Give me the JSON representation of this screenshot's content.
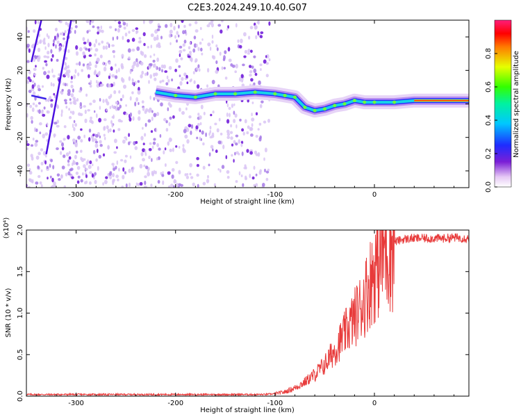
{
  "page": {
    "title": "C2E3.2024.249.10.40.G07"
  },
  "chart_data": [
    {
      "type": "heatmap",
      "title": "C2E3.2024.249.10.40.G07",
      "xlabel": "Height of straight line (km)",
      "ylabel": "Frequency (Hz)",
      "xlim": [
        -350,
        95
      ],
      "ylim": [
        -50,
        50
      ],
      "xticks": [
        -300,
        -200,
        -100,
        0
      ],
      "yticks": [
        -40,
        -20,
        0,
        20,
        40
      ],
      "colorbar": {
        "label": "Normalized spectral amplitude",
        "range": [
          0,
          1
        ],
        "ticks": [
          0.0,
          0.2,
          0.4,
          0.6,
          0.8
        ],
        "colormap": "rainbow (white-violet-blue-cyan-green-yellow-red-magenta)"
      },
      "dominant_ridge": {
        "description": "strong signal trace",
        "x": [
          -220,
          -200,
          -180,
          -160,
          -140,
          -120,
          -100,
          -90,
          -80,
          -70,
          -60,
          -50,
          -40,
          -30,
          -20,
          -10,
          0,
          20,
          40,
          60,
          80,
          95
        ],
        "y": [
          7,
          5,
          4,
          6,
          6,
          7,
          6,
          5,
          4,
          -2,
          -4,
          -3,
          -1,
          0,
          2,
          1,
          1,
          1,
          2,
          2,
          2,
          2
        ]
      },
      "diagonal_streaks": {
        "description": "steep lines at left",
        "lines": [
          {
            "x": [
              -330,
              -305
            ],
            "y": [
              -30,
              50
            ]
          },
          {
            "x": [
              -345,
              -335
            ],
            "y": [
              25,
              50
            ]
          }
        ]
      },
      "scatter_region_xlim": [
        -350,
        -105
      ]
    },
    {
      "type": "line",
      "xlabel": "Height of straight line (km)",
      "ylabel": "SNR (10 * v/v)",
      "scale_note": "(x10⁴)",
      "xlim": [
        -350,
        95
      ],
      "ylim": [
        0,
        2.0
      ],
      "xticks": [
        -300,
        -200,
        -100,
        0
      ],
      "yticks": [
        0.0,
        0.5,
        1.0,
        1.5,
        2.0
      ],
      "line_color": "#e83a3a",
      "x": [
        -350,
        -300,
        -250,
        -200,
        -150,
        -110,
        -100,
        -90,
        -80,
        -70,
        -60,
        -50,
        -40,
        -30,
        -20,
        -15,
        -10,
        -5,
        0,
        5,
        10,
        20,
        30,
        40,
        50,
        60,
        70,
        80,
        95
      ],
      "y": [
        0.02,
        0.02,
        0.02,
        0.02,
        0.02,
        0.02,
        0.03,
        0.05,
        0.1,
        0.17,
        0.26,
        0.38,
        0.55,
        0.75,
        0.95,
        1.05,
        1.18,
        1.35,
        1.52,
        1.65,
        1.78,
        1.86,
        1.89,
        1.9,
        1.9,
        1.9,
        1.9,
        1.91,
        1.9
      ]
    }
  ],
  "colors": {
    "axis": "#000000",
    "trace_red": "#e83a3a"
  }
}
